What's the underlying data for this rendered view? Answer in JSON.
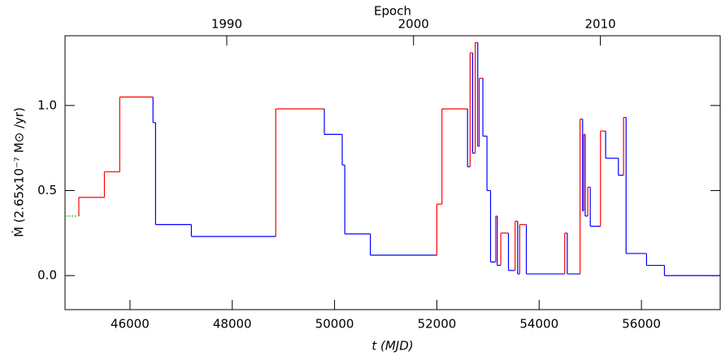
{
  "chart_data": {
    "type": "step",
    "xlabel": "t (MJD)",
    "ylabel": "Ṁ (2.65x10⁻⁷ M⊙ /yr)",
    "top_label": "Epoch",
    "xlim": [
      44730,
      57540
    ],
    "ylim": [
      -0.2,
      1.41
    ],
    "xticks": [
      46000,
      48000,
      50000,
      52000,
      54000,
      56000
    ],
    "yticks": [
      {
        "value": 0,
        "label": "0.0"
      },
      {
        "value": 0.5,
        "label": "0.5"
      },
      {
        "value": 1,
        "label": "1.0"
      }
    ],
    "top_ticks": [
      {
        "value": 47892,
        "label": "1990"
      },
      {
        "value": 51544,
        "label": "2000"
      },
      {
        "value": 55197,
        "label": "2010"
      }
    ],
    "rise_color": "#ff0000",
    "fall_color": "#0000ff",
    "x": [
      45000,
      45500,
      45800,
      46450,
      46500,
      47200,
      48850,
      49800,
      50150,
      50200,
      50700,
      52000,
      52100,
      52600,
      52650,
      52700,
      52750,
      52800,
      52830,
      52900,
      52980,
      53050,
      53150,
      53180,
      53250,
      53400,
      53530,
      53580,
      53620,
      53750,
      54500,
      54550,
      54800,
      54850,
      54870,
      54900,
      54950,
      55000,
      55200,
      55300,
      55550,
      55650,
      55700,
      56100,
      56450
    ],
    "values": [
      0.46,
      0.61,
      1.05,
      0.9,
      0.3,
      0.23,
      0.98,
      0.83,
      0.65,
      0.245,
      0.12,
      0.42,
      0.98,
      0.64,
      1.31,
      0.72,
      1.37,
      0.76,
      1.16,
      0.82,
      0.5,
      0.08,
      0.35,
      0.06,
      0.25,
      0.03,
      0.32,
      0.01,
      0.3,
      0.01,
      0.25,
      0.01,
      0.92,
      0.38,
      0.83,
      0.35,
      0.52,
      0.29,
      0.85,
      0.69,
      0.59,
      0.93,
      0.13,
      0.06,
      0.0
    ],
    "initial": {
      "x": [
        44730,
        45000
      ],
      "values": [
        0.35,
        0.35
      ],
      "color": "#00cc00"
    }
  }
}
